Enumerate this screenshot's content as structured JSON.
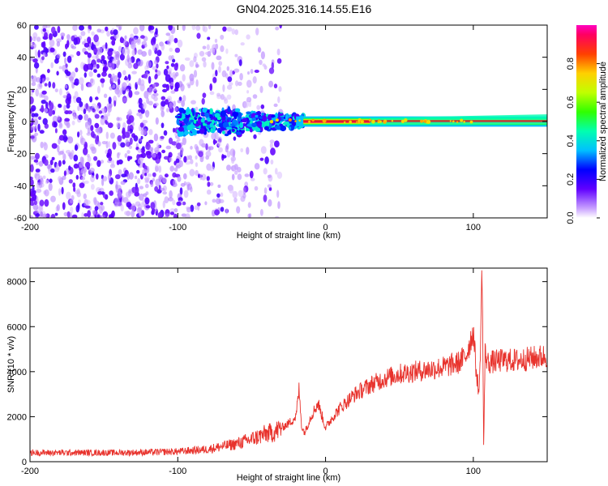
{
  "title": "GN04.2025.316.14.55.E16",
  "colors": {
    "snr_line": "#e8332d",
    "frame": "#000000",
    "ridge": "#d92020"
  },
  "chart_data": [
    {
      "type": "heatmap",
      "name": "spectrogram",
      "xlabel": "Height of straight line (km)",
      "ylabel": "Frequency (Hz)",
      "xlim": [
        -200,
        150
      ],
      "ylim": [
        -60,
        60
      ],
      "xticks": [
        "-200",
        "-100",
        "0",
        "100"
      ],
      "yticks": [
        "60",
        "40",
        "20",
        "0",
        "-20",
        "-40",
        "-60"
      ],
      "colorbar": {
        "label": "Normalized spectral amplitude",
        "range": [
          0,
          1
        ],
        "ticks": [
          "0.0",
          "0.2",
          "0.4",
          "0.6",
          "0.8"
        ]
      },
      "features": [
        {
          "region": "noise",
          "x_range": [
            -200,
            -35
          ],
          "freq_range": [
            -60,
            60
          ],
          "amplitude": "0.0-0.2"
        },
        {
          "region": "broad signal",
          "x_range": [
            -100,
            -20
          ],
          "center_freq": 0,
          "spread_hz": 8,
          "amplitude": "0.2-0.5"
        },
        {
          "region": "narrow carrier",
          "x_range": [
            -20,
            150
          ],
          "center_freq": 0,
          "spread_hz": 2,
          "amplitude": "0.9-1.0"
        }
      ]
    },
    {
      "type": "line",
      "name": "snr",
      "xlabel": "Height of straight line (km)",
      "ylabel": "SNR (10 * v/v)",
      "xlim": [
        -200,
        150
      ],
      "ylim": [
        0,
        8600
      ],
      "xticks": [
        "-200",
        "-100",
        "0",
        "100"
      ],
      "yticks": [
        "0",
        "2000",
        "4000",
        "6000",
        "8000"
      ],
      "series": [
        {
          "name": "SNR",
          "x": [
            -200,
            -180,
            -160,
            -140,
            -120,
            -100,
            -80,
            -60,
            -50,
            -40,
            -35,
            -30,
            -25,
            -20,
            -18,
            -16,
            -14,
            -10,
            -5,
            0,
            5,
            10,
            15,
            20,
            25,
            30,
            40,
            50,
            60,
            70,
            80,
            90,
            95,
            100,
            102,
            104,
            106,
            107,
            108,
            110,
            120,
            130,
            140,
            150
          ],
          "y": [
            400,
            400,
            400,
            400,
            420,
            450,
            550,
            800,
            1000,
            1250,
            1300,
            1500,
            1700,
            2000,
            3200,
            1500,
            1300,
            2000,
            2600,
            1500,
            2000,
            2400,
            2700,
            3000,
            3200,
            3400,
            3700,
            3900,
            4000,
            4100,
            4200,
            4400,
            4700,
            5800,
            4000,
            3000,
            8600,
            700,
            4800,
            4400,
            4500,
            4500,
            4600,
            4700
          ]
        }
      ]
    }
  ]
}
